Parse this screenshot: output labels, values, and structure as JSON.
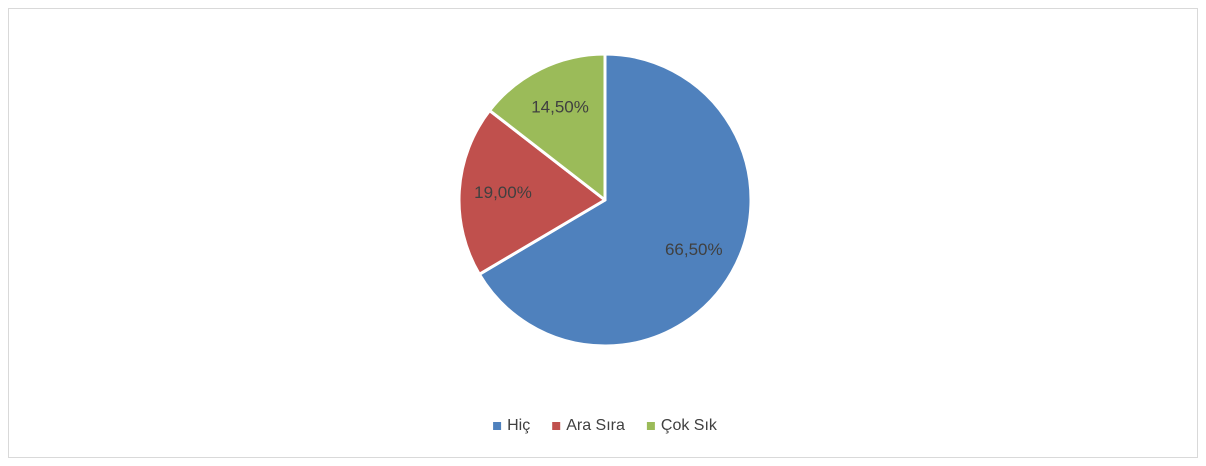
{
  "chart_data": {
    "type": "pie",
    "categories": [
      "Hiç",
      "Ara Sıra",
      "Çok Sık"
    ],
    "values": [
      66.5,
      19.0,
      14.5
    ],
    "value_labels": [
      "66,50%",
      "19,00%",
      "14,50%"
    ],
    "colors": [
      "#4f81bd",
      "#c0504d",
      "#9bbb59"
    ],
    "legend": "bottom"
  }
}
